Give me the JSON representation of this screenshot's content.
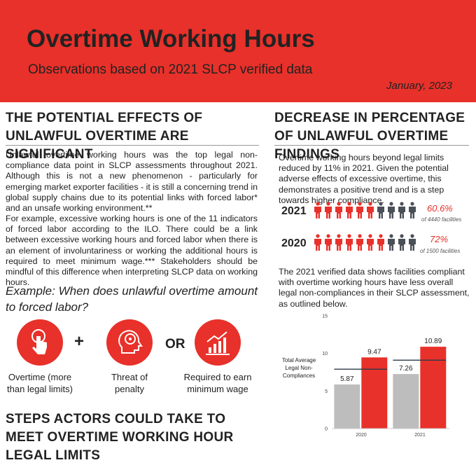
{
  "header": {
    "title": "Overtime Working Hours",
    "subtitle": "Observations based on 2021 SLCP verified data",
    "date": "January, 2023"
  },
  "left": {
    "heading": "THE POTENTIAL EFFECTS OF UNLAWFUL OVERTIME ARE SIGNIFICANT",
    "paragraphs": [
      "Unlawful overtime working hours was the top legal non-compliance data point in SLCP assessments throughout 2021. Although this is not a new phenomenon - particularly for emerging market exporter facilities - it is still a concerning trend in global supply chains due to its potential links with forced labor* and an unsafe working environment.**",
      "For example, excessive working hours is one of the 11 indicators of forced labor according to the ILO. There could be a link between excessive working hours and forced labor when there is an element of involuntariness or working the additional hours is required to meet minimum wage.*** Stakeholders should be mindful of this difference when interpreting SLCP data on working hours."
    ],
    "example_question": "Example: When does unlawful overtime amount to forced labor?",
    "conditions": [
      "Overtime (more than legal limits)",
      "Threat of penalty",
      "Required to earn minimum wage"
    ],
    "operators": [
      "+",
      "OR"
    ],
    "steps_heading": "STEPS ACTORS COULD TAKE TO MEET OVERTIME WORKING HOUR LEGAL LIMITS"
  },
  "right": {
    "heading": "DECREASE IN PERCENTAGE OF UNLAWFUL OVERTIME FINDINGS",
    "intro": "Overtime working hours beyond legal limits reduced by 11% in 2021. Given the potential adverse effects of excessive overtime, this demonstrates a positive trend and is a step towards higher compliance.",
    "rows": [
      {
        "year": "2021",
        "percent": "60.6%",
        "facilities": "of 4440 facilities"
      },
      {
        "year": "2020",
        "percent": "72%",
        "facilities": "of 1500 facilities"
      }
    ],
    "outro": "The 2021 verified data shows facilities compliant with overtime working hours have less overall legal non-compliances in their SLCP assessment, as outlined below."
  },
  "chart_data": {
    "type": "bar",
    "ylabel": "Total Average Legal Non-Compliances",
    "categories": [
      "2020",
      "2021"
    ],
    "series": [
      {
        "color": "#bdbdbd",
        "values": [
          5.87,
          7.26
        ]
      },
      {
        "color": "#e8312a",
        "values": [
          9.47,
          10.89
        ]
      }
    ],
    "reference_values": [
      7.9,
      9.1
    ],
    "reference_color": "#2b3a4a",
    "ylim": [
      0,
      15
    ],
    "yticks": [
      0,
      5,
      10,
      15
    ],
    "grid": false
  }
}
